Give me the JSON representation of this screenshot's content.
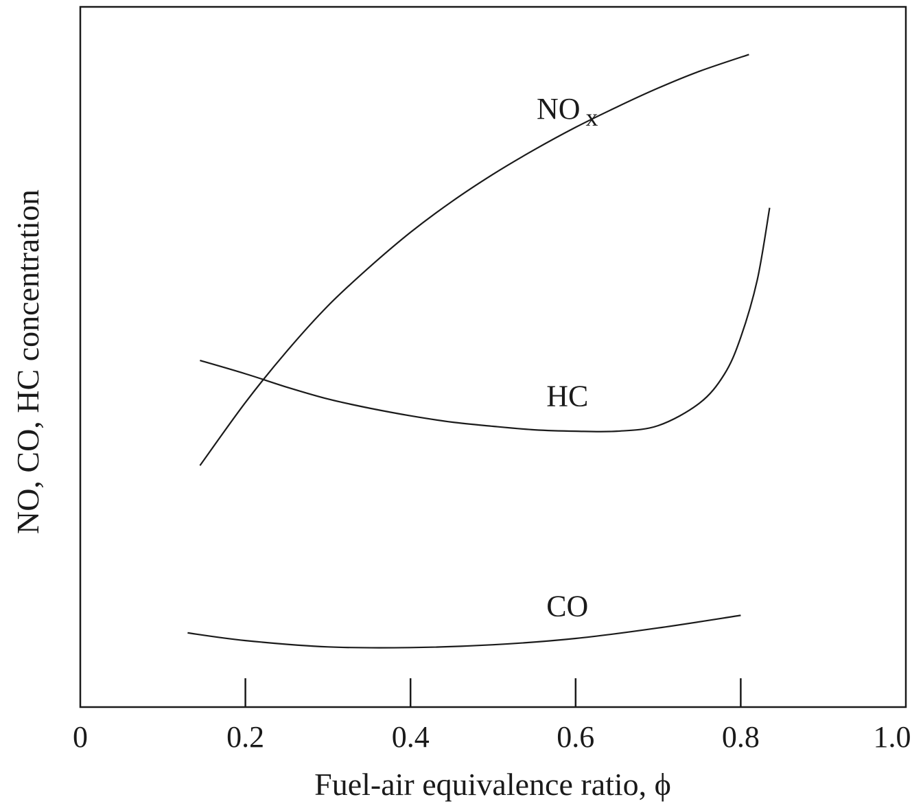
{
  "chart_data": {
    "type": "line",
    "xlabel": "Fuel-air equivalence ratio, ϕ",
    "ylabel": "NO, CO, HC concentration",
    "xlim": [
      0,
      1.0
    ],
    "ylim": [
      0,
      100
    ],
    "x_ticks": [
      "0",
      "0.2",
      "0.4",
      "0.6",
      "0.8",
      "1.0"
    ],
    "y_ticks": [],
    "grid": false,
    "series": [
      {
        "name": "NO",
        "subscript": "x",
        "x": [
          0.145,
          0.2,
          0.25,
          0.3,
          0.35,
          0.4,
          0.45,
          0.5,
          0.55,
          0.6,
          0.65,
          0.7,
          0.75,
          0.81
        ],
        "y": [
          34.5,
          43.5,
          50.8,
          57.3,
          62.8,
          67.8,
          72.2,
          76.1,
          79.6,
          82.8,
          85.7,
          88.4,
          90.8,
          93.2
        ]
      },
      {
        "name": "HC",
        "x": [
          0.145,
          0.2,
          0.25,
          0.3,
          0.35,
          0.4,
          0.45,
          0.5,
          0.55,
          0.6,
          0.65,
          0.7,
          0.75,
          0.78,
          0.8,
          0.82,
          0.835
        ],
        "y": [
          49.5,
          47.6,
          45.7,
          44.0,
          42.7,
          41.6,
          40.7,
          40.1,
          39.6,
          39.4,
          39.4,
          40.2,
          43.4,
          47.5,
          52.8,
          61.0,
          71.3
        ]
      },
      {
        "name": "CO",
        "x": [
          0.13,
          0.2,
          0.3,
          0.4,
          0.5,
          0.6,
          0.7,
          0.8
        ],
        "y": [
          10.6,
          9.5,
          8.6,
          8.5,
          8.9,
          9.8,
          11.3,
          13.1
        ]
      }
    ]
  }
}
